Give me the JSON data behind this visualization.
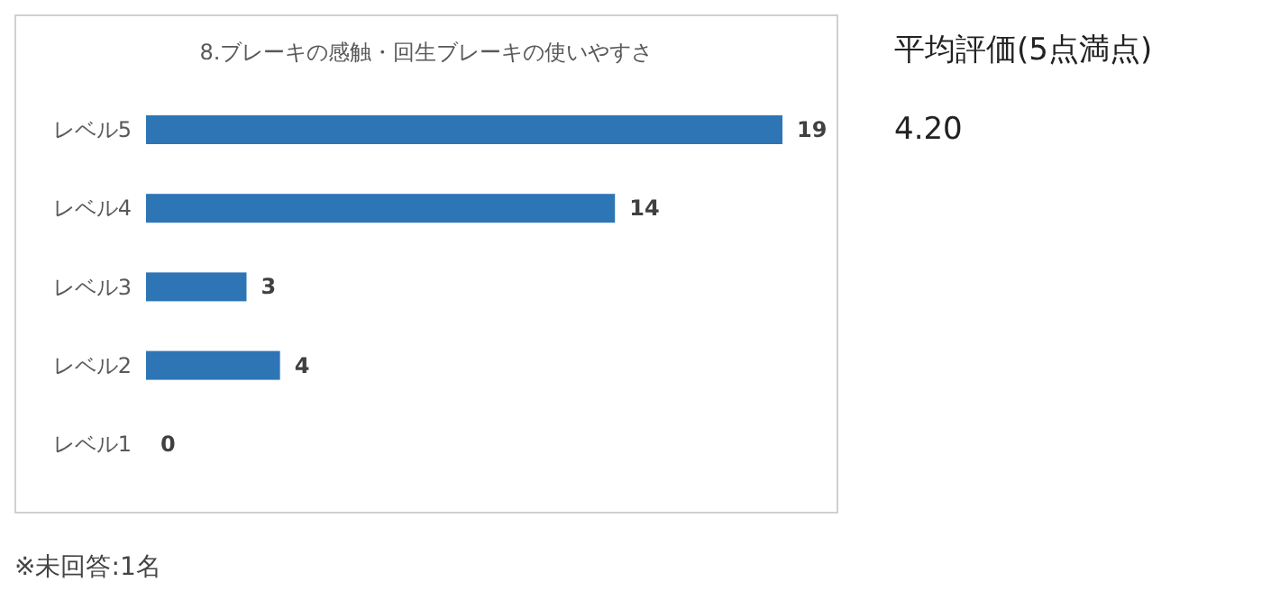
{
  "chart_data": {
    "type": "bar",
    "orientation": "horizontal",
    "title": "8.ブレーキの感触・回生ブレーキの使いやすさ",
    "categories": [
      "レベル5",
      "レベル4",
      "レベル3",
      "レベル2",
      "レベル1"
    ],
    "values": [
      19,
      14,
      3,
      4,
      0
    ],
    "color": "#2e75b6",
    "data_labels": true,
    "annotations": [
      "平均評価(5点満点)",
      "4.20",
      "※未回答:1名"
    ]
  }
}
